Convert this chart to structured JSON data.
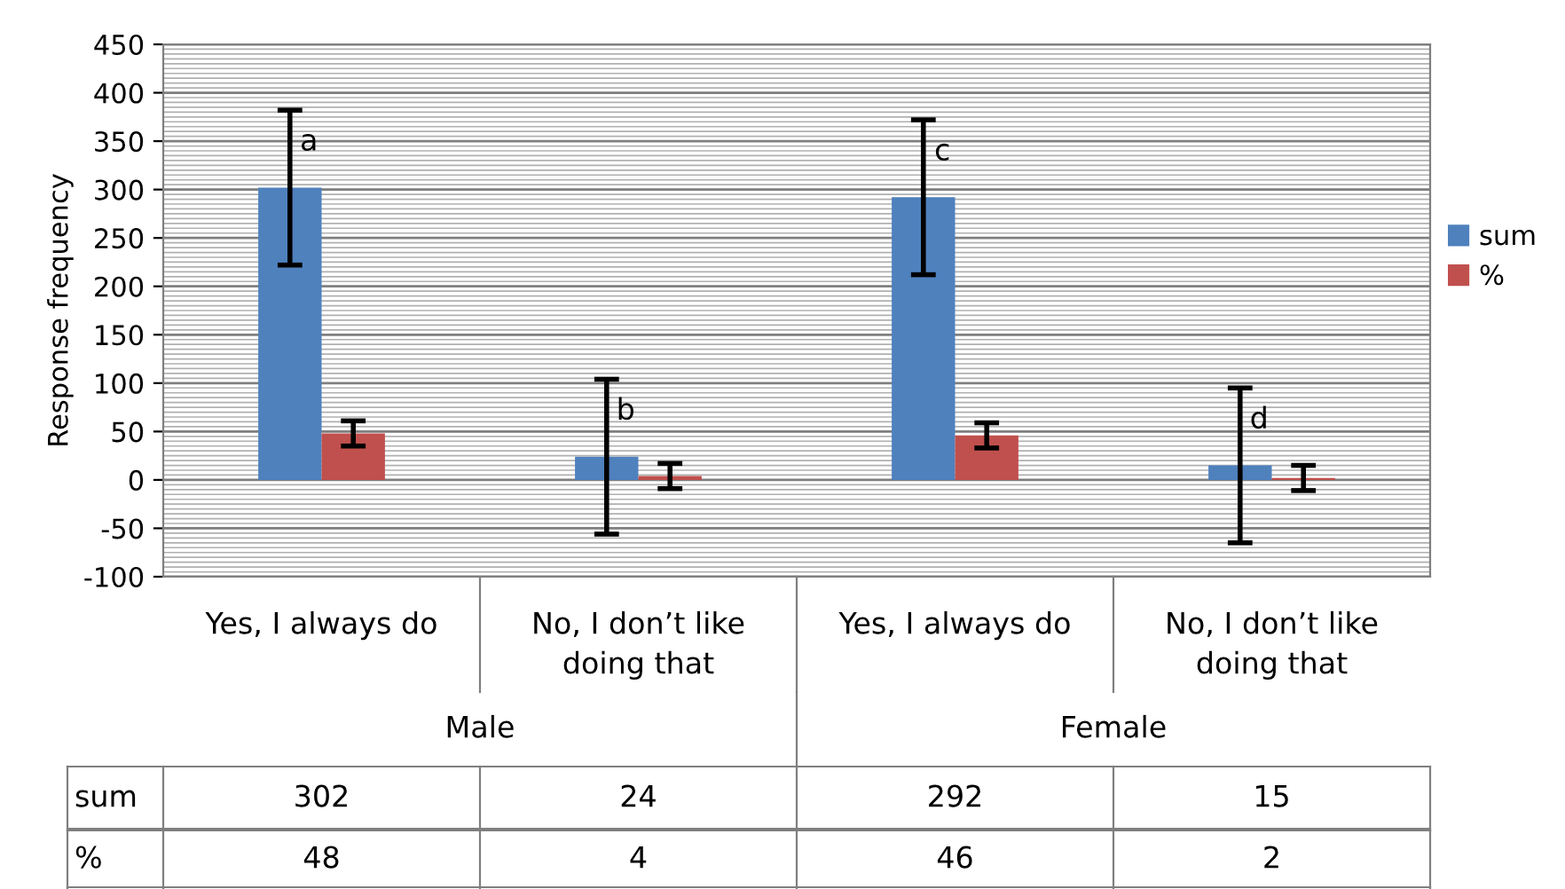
{
  "chart_data": {
    "type": "bar",
    "ylabel": "Response frequency",
    "categories": [
      "Yes, I always do",
      "No, I don’t like doing that",
      "Yes, I always do",
      "No, I don’t like doing that"
    ],
    "series": [
      {
        "name": "sum",
        "color": "#4f81bd",
        "values": [
          302,
          24,
          292,
          15
        ],
        "errors": [
          80,
          80,
          80,
          80
        ]
      },
      {
        "name": "%",
        "color": "#c0504d",
        "values": [
          48,
          4,
          46,
          2
        ],
        "errors": [
          13,
          13,
          13,
          13
        ]
      }
    ],
    "ylim": [
      -100,
      450
    ],
    "yticks": [
      -100,
      -50,
      0,
      50,
      100,
      150,
      200,
      250,
      300,
      350,
      400,
      450
    ],
    "grid": "y",
    "legend": "right",
    "data_labels": true,
    "annotations": [
      "a",
      "b",
      "c",
      "d",
      "Male",
      "Female"
    ]
  }
}
